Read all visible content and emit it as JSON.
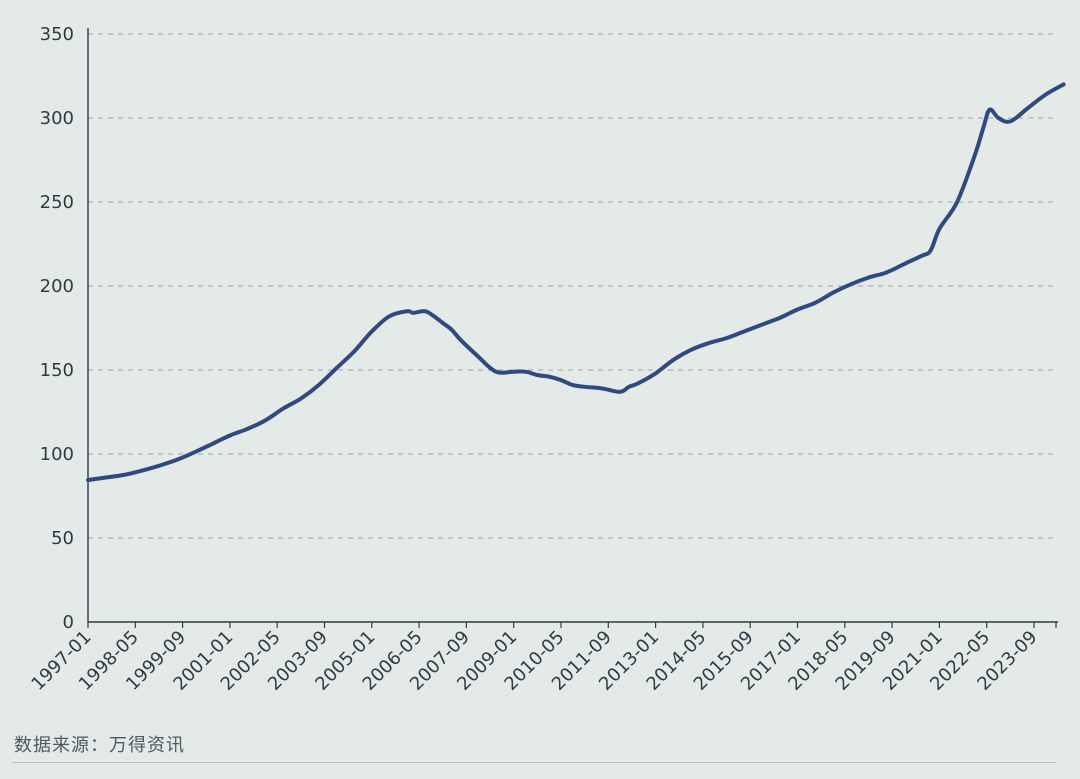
{
  "chart_data": {
    "type": "line",
    "title": "",
    "xlabel": "",
    "ylabel": "",
    "ylim": [
      0,
      350
    ],
    "yticks": [
      0,
      50,
      100,
      150,
      200,
      250,
      300,
      350
    ],
    "grid": "horizontal-dashed",
    "line_color": "#2e4a80",
    "grid_color": "#a9b3b6",
    "xtick_labels": [
      "1997-01",
      "1998-05",
      "1999-09",
      "2001-01",
      "2002-05",
      "2003-09",
      "2005-01",
      "2006-05",
      "2007-09",
      "2009-01",
      "2010-05",
      "2011-09",
      "2013-01",
      "2014-05",
      "2015-09",
      "2017-01",
      "2018-05",
      "2019-09",
      "2021-01",
      "2022-05",
      "2023-09"
    ],
    "series": [
      {
        "x": [
          "1997-01",
          "1997-07",
          "1998-01",
          "1998-07",
          "1999-01",
          "1999-07",
          "2000-01",
          "2000-07",
          "2001-01",
          "2001-07",
          "2002-01",
          "2002-07",
          "2003-01",
          "2003-07",
          "2004-01",
          "2004-07",
          "2005-01",
          "2005-07",
          "2006-01",
          "2006-03",
          "2006-07",
          "2006-10",
          "2007-01",
          "2007-04",
          "2007-07",
          "2008-01",
          "2008-07",
          "2009-01",
          "2009-05",
          "2009-09",
          "2010-01",
          "2010-05",
          "2010-09",
          "2011-01",
          "2011-07",
          "2012-01",
          "2012-04",
          "2012-07",
          "2013-01",
          "2013-07",
          "2014-01",
          "2014-07",
          "2015-01",
          "2015-07",
          "2016-01",
          "2016-07",
          "2017-01",
          "2017-07",
          "2018-01",
          "2018-07",
          "2019-01",
          "2019-07",
          "2020-01",
          "2020-07",
          "2020-10",
          "2021-01",
          "2021-07",
          "2022-01",
          "2022-04",
          "2022-06",
          "2022-09",
          "2023-01",
          "2023-07",
          "2024-01",
          "2024-07"
        ],
        "values": [
          84.5,
          86,
          87.5,
          90,
          93,
          96.5,
          101,
          106,
          111,
          115,
          120,
          127,
          133,
          141,
          151,
          161,
          173,
          182,
          185,
          184,
          185,
          182,
          178,
          174,
          168,
          158,
          149,
          149,
          149,
          147,
          146,
          144,
          141,
          140,
          139,
          137,
          140,
          142,
          148,
          156,
          162,
          166,
          169,
          173,
          177,
          181,
          186,
          190,
          196,
          201,
          205,
          208,
          213,
          218,
          221,
          234,
          250,
          278,
          295,
          305,
          300,
          298,
          306,
          314,
          320
        ]
      }
    ]
  },
  "source_note": "数据来源：万得资讯"
}
